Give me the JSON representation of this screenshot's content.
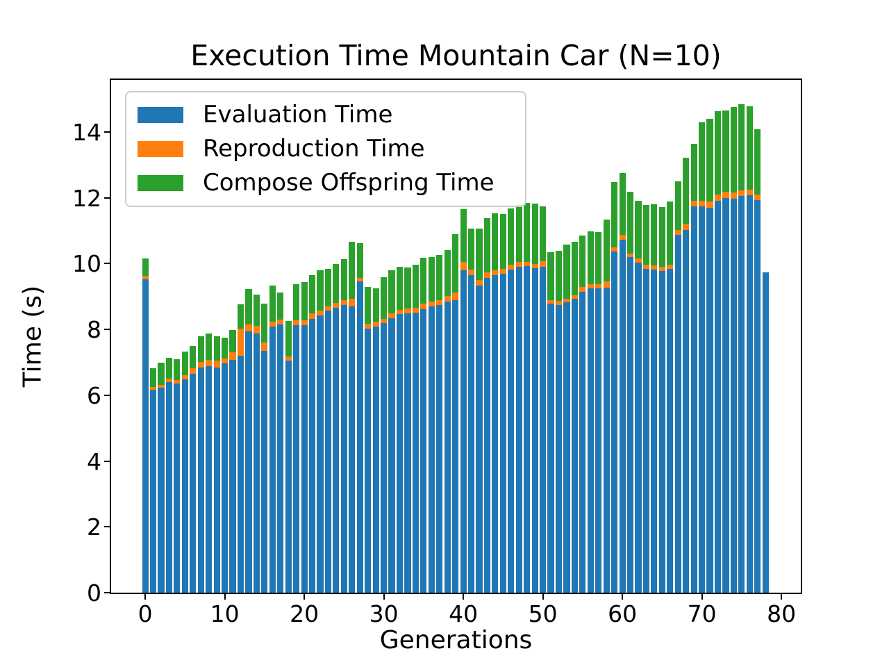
{
  "chart_data": {
    "type": "bar",
    "stacked": true,
    "title": "Execution Time Mountain Car (N=10)",
    "xlabel": "Generations",
    "ylabel": "Time (s)",
    "legend_position": "upper left",
    "grid": false,
    "xlim": [
      -4.4,
      82.4
    ],
    "ylim": [
      0,
      15.58
    ],
    "x_ticks": [
      0,
      10,
      20,
      30,
      40,
      50,
      60,
      70,
      80
    ],
    "y_ticks": [
      0,
      2,
      4,
      6,
      8,
      10,
      12,
      14
    ],
    "categories": [
      0,
      1,
      2,
      3,
      4,
      5,
      6,
      7,
      8,
      9,
      10,
      11,
      12,
      13,
      14,
      15,
      16,
      17,
      18,
      19,
      20,
      21,
      22,
      23,
      24,
      25,
      26,
      27,
      28,
      29,
      30,
      31,
      32,
      33,
      34,
      35,
      36,
      37,
      38,
      39,
      40,
      41,
      42,
      43,
      44,
      45,
      46,
      47,
      48,
      49,
      50,
      51,
      52,
      53,
      54,
      55,
      56,
      57,
      58,
      59,
      60,
      61,
      62,
      63,
      64,
      65,
      66,
      67,
      68,
      69,
      70,
      71,
      72,
      73,
      74,
      75,
      76,
      77,
      78
    ],
    "series": [
      {
        "name": "Evaluation Time",
        "color": "#1f77b4",
        "values": [
          9.52,
          6.16,
          6.23,
          6.39,
          6.35,
          6.49,
          6.65,
          6.85,
          6.88,
          6.85,
          6.97,
          7.08,
          7.19,
          7.95,
          7.88,
          7.35,
          8.09,
          8.16,
          7.05,
          8.13,
          8.14,
          8.32,
          8.43,
          8.57,
          8.66,
          8.74,
          8.69,
          9.45,
          8.03,
          8.09,
          8.19,
          8.34,
          8.46,
          8.48,
          8.52,
          8.62,
          8.69,
          8.75,
          8.85,
          8.9,
          9.8,
          9.64,
          9.33,
          9.57,
          9.64,
          9.7,
          9.82,
          9.91,
          9.93,
          9.87,
          9.91,
          8.78,
          8.74,
          8.83,
          8.94,
          9.15,
          9.25,
          9.25,
          9.27,
          10.36,
          10.73,
          10.19,
          10.03,
          9.85,
          9.81,
          9.78,
          9.83,
          10.88,
          11.03,
          11.74,
          11.75,
          11.7,
          11.91,
          12.0,
          11.97,
          12.05,
          12.07,
          11.92,
          9.73
        ]
      },
      {
        "name": "Reproduction Time",
        "color": "#ff7f0e",
        "values": [
          0.1,
          0.1,
          0.09,
          0.12,
          0.11,
          0.12,
          0.17,
          0.16,
          0.19,
          0.2,
          0.14,
          0.22,
          0.83,
          0.2,
          0.23,
          0.25,
          0.14,
          0.13,
          0.13,
          0.14,
          0.14,
          0.16,
          0.14,
          0.14,
          0.14,
          0.16,
          0.25,
          0.11,
          0.15,
          0.14,
          0.13,
          0.14,
          0.14,
          0.16,
          0.14,
          0.16,
          0.16,
          0.15,
          0.16,
          0.22,
          0.25,
          0.17,
          0.17,
          0.16,
          0.16,
          0.15,
          0.14,
          0.14,
          0.13,
          0.12,
          0.17,
          0.1,
          0.13,
          0.11,
          0.1,
          0.14,
          0.12,
          0.12,
          0.2,
          0.14,
          0.14,
          0.12,
          0.12,
          0.11,
          0.13,
          0.13,
          0.13,
          0.15,
          0.18,
          0.16,
          0.17,
          0.18,
          0.18,
          0.18,
          0.19,
          0.18,
          0.18,
          0.19,
          0.0
        ]
      },
      {
        "name": "Compose Offspring Time",
        "color": "#2ca02c",
        "values": [
          0.54,
          0.56,
          0.67,
          0.62,
          0.64,
          0.72,
          0.67,
          0.78,
          0.8,
          0.74,
          0.63,
          0.69,
          0.74,
          1.07,
          0.95,
          1.18,
          1.11,
          0.84,
          1.07,
          1.11,
          1.16,
          1.17,
          1.23,
          1.14,
          1.19,
          1.23,
          1.72,
          1.07,
          1.11,
          1.02,
          1.26,
          1.32,
          1.3,
          1.24,
          1.3,
          1.39,
          1.34,
          1.36,
          1.4,
          1.78,
          1.6,
          1.26,
          1.57,
          1.65,
          1.73,
          1.66,
          1.71,
          1.74,
          1.79,
          1.83,
          1.66,
          1.47,
          1.53,
          1.64,
          1.62,
          1.57,
          1.62,
          1.58,
          1.88,
          1.98,
          1.89,
          1.87,
          1.77,
          1.83,
          1.87,
          1.82,
          1.92,
          1.48,
          2.01,
          1.74,
          2.38,
          2.52,
          2.54,
          2.48,
          2.6,
          2.62,
          2.53,
          1.97,
          0.0
        ]
      }
    ]
  },
  "colors": {
    "evaluation": "#1f77b4",
    "reproduction": "#ff7f0e",
    "compose_offspring": "#2ca02c",
    "spine": "#000000",
    "legend_border": "#cccccc"
  }
}
